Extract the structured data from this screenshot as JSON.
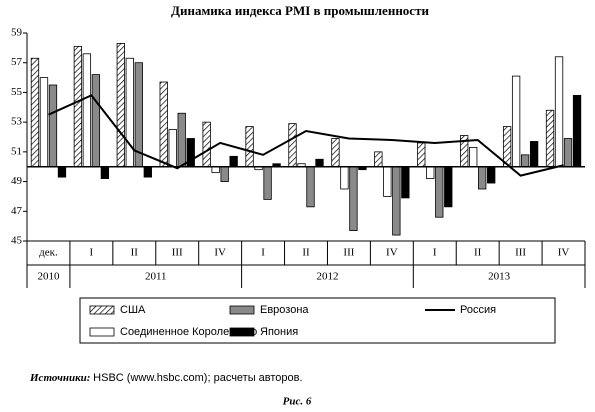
{
  "chart_data": {
    "type": "bar",
    "title": "Динамика индекса PMI в промышленности",
    "categories": [
      "дек.",
      "I",
      "II",
      "III",
      "IV",
      "I",
      "II",
      "III",
      "IV",
      "I",
      "II",
      "III",
      "IV"
    ],
    "year_groups": [
      {
        "label": "2010",
        "count": 1
      },
      {
        "label": "2011",
        "count": 4
      },
      {
        "label": "2012",
        "count": 4
      },
      {
        "label": "2013",
        "count": 4
      }
    ],
    "baseline": 50,
    "series": [
      {
        "name": "США",
        "color": "hatch",
        "values": [
          57.3,
          58.1,
          58.3,
          55.7,
          53.0,
          52.7,
          52.9,
          51.9,
          51.0,
          51.6,
          52.1,
          52.7,
          53.8
        ]
      },
      {
        "name": "Соединенное Королевство",
        "color": "#ffffff",
        "values": [
          56.0,
          57.6,
          57.3,
          52.5,
          49.6,
          49.8,
          50.2,
          48.5,
          48.0,
          49.2,
          51.3,
          56.1,
          57.4
        ]
      },
      {
        "name": "Еврозона",
        "color": "#8a8a8a",
        "values": [
          55.5,
          56.2,
          57.0,
          53.6,
          49.0,
          47.8,
          47.3,
          45.7,
          45.4,
          46.6,
          48.5,
          50.8,
          51.9
        ]
      },
      {
        "name": "Япония",
        "color": "#000000",
        "values": [
          49.3,
          49.2,
          49.3,
          51.9,
          50.7,
          50.2,
          50.5,
          49.8,
          47.9,
          47.3,
          48.9,
          51.7,
          54.8
        ]
      },
      {
        "name": "Россия",
        "type": "line",
        "color": "#000000",
        "values": [
          53.5,
          54.8,
          51.1,
          49.9,
          51.6,
          50.8,
          52.4,
          51.9,
          51.8,
          51.6,
          51.8,
          49.4,
          50.1
        ]
      }
    ],
    "ylim": [
      45,
      59
    ],
    "yticks": [
      45,
      47,
      49,
      51,
      53,
      55,
      57,
      59
    ]
  },
  "source_label": "Источники:",
  "source_text": "HSBC (www.hsbc.com); расчеты авторов.",
  "caption": "Рис. 6"
}
